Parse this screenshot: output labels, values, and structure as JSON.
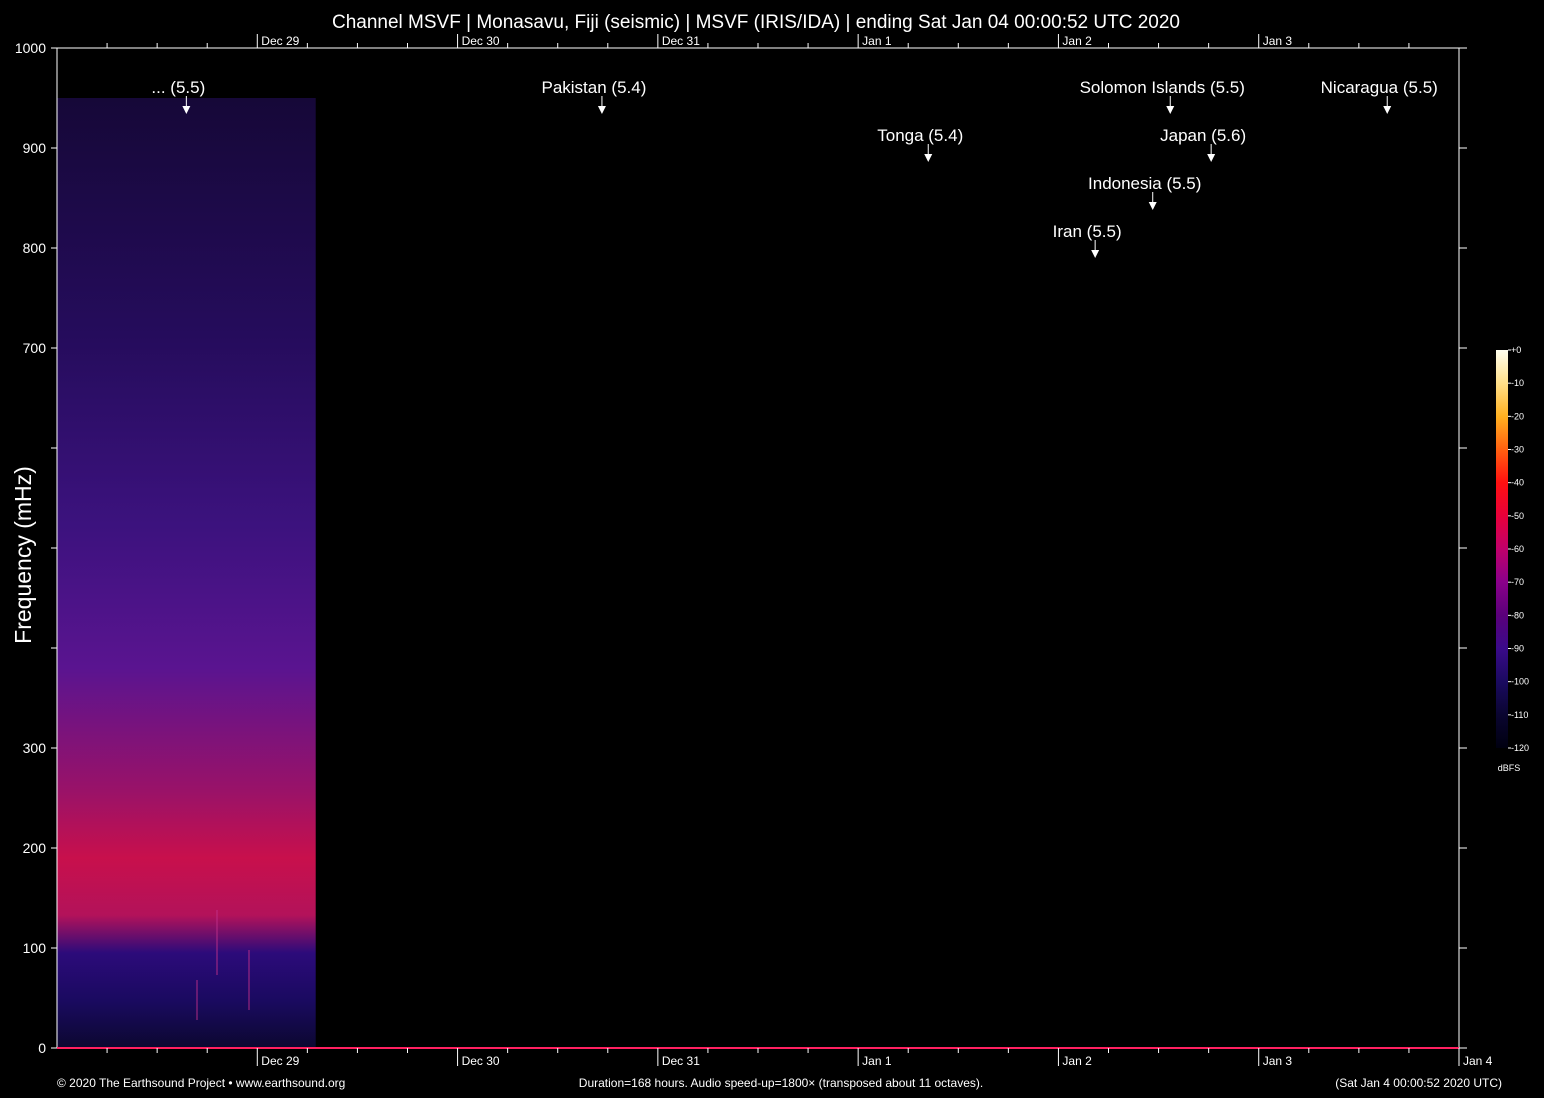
{
  "chart_data": {
    "type": "heatmap",
    "title": "Channel MSVF | Monasavu, Fiji (seismic) | MSVF (IRIS/IDA) | ending Sat Jan 04 00:00:52 UTC 2020",
    "ylabel": "Frequency (mHz)",
    "ylim": [
      0,
      1000
    ],
    "y_ticks": [
      0,
      100,
      200,
      300,
      400,
      500,
      600,
      700,
      800,
      900,
      1000
    ],
    "y_tick_labels": [
      "0",
      "100",
      "200",
      "300",
      "",
      "",
      "",
      "700",
      "800",
      "900",
      "1000"
    ],
    "x_range_hours": [
      0,
      168
    ],
    "x_day_labels_bottom": [
      {
        "label": "Dec 29",
        "hour": 24
      },
      {
        "label": "Dec 30",
        "hour": 48
      },
      {
        "label": "Dec 31",
        "hour": 72
      },
      {
        "label": "Jan  1",
        "hour": 96
      },
      {
        "label": "Jan  2",
        "hour": 120
      },
      {
        "label": "Jan  3",
        "hour": 144
      },
      {
        "label": "Jan  4",
        "hour": 168
      }
    ],
    "x_day_labels_top": [
      {
        "label": "Dec 29",
        "hour": 24
      },
      {
        "label": "Dec 30",
        "hour": 48
      },
      {
        "label": "Dec 31",
        "hour": 72
      },
      {
        "label": "Jan  1",
        "hour": 96
      },
      {
        "label": "Jan  2",
        "hour": 120
      },
      {
        "label": "Jan  3",
        "hour": 144
      }
    ],
    "minor_tick_hours": 6,
    "data_hours": [
      0,
      31
    ],
    "data_freq_max_mhz": 950,
    "events": [
      {
        "label": "... (5.5)",
        "hour": 15.5,
        "row": 0
      },
      {
        "label": "Pakistan (5.4)",
        "hour": 65.3,
        "row": 0
      },
      {
        "label": "Solomon Islands (5.5)",
        "hour": 133.4,
        "row": 0
      },
      {
        "label": "Nicaragua (5.5)",
        "hour": 159.4,
        "row": 0
      },
      {
        "label": "Tonga (5.4)",
        "hour": 104.4,
        "row": 1
      },
      {
        "label": "Japan (5.6)",
        "hour": 138.3,
        "row": 1
      },
      {
        "label": "Indonesia (5.5)",
        "hour": 131.3,
        "row": 2
      },
      {
        "label": "Iran (5.5)",
        "hour": 124.4,
        "row": 3
      }
    ],
    "colorbar": {
      "ticks": [
        "+0",
        "-10",
        "-20",
        "-30",
        "-40",
        "-50",
        "-60",
        "-70",
        "-80",
        "-90",
        "-100",
        "-110",
        "-120"
      ],
      "unit": "dBFS",
      "colors": [
        "#fffff0",
        "#ffe08a",
        "#ffb020",
        "#ff6010",
        "#ff1010",
        "#e8003a",
        "#c0006a",
        "#8a008a",
        "#5a007a",
        "#3a0a8a",
        "#1a0a60",
        "#0a0530",
        "#000010"
      ]
    },
    "grid": false
  },
  "footer": {
    "left": "© 2020 The Earthsound Project • www.earthsound.org",
    "center": "Duration=168 hours. Audio speed-up=1800× (transposed about 11 octaves).",
    "right": "(Sat Jan  4 00:00:52 2020 UTC)"
  },
  "colors": {
    "background": "#000000",
    "axis": "#ffffff",
    "baseline": "#ff2060",
    "text": "#ffffff"
  }
}
